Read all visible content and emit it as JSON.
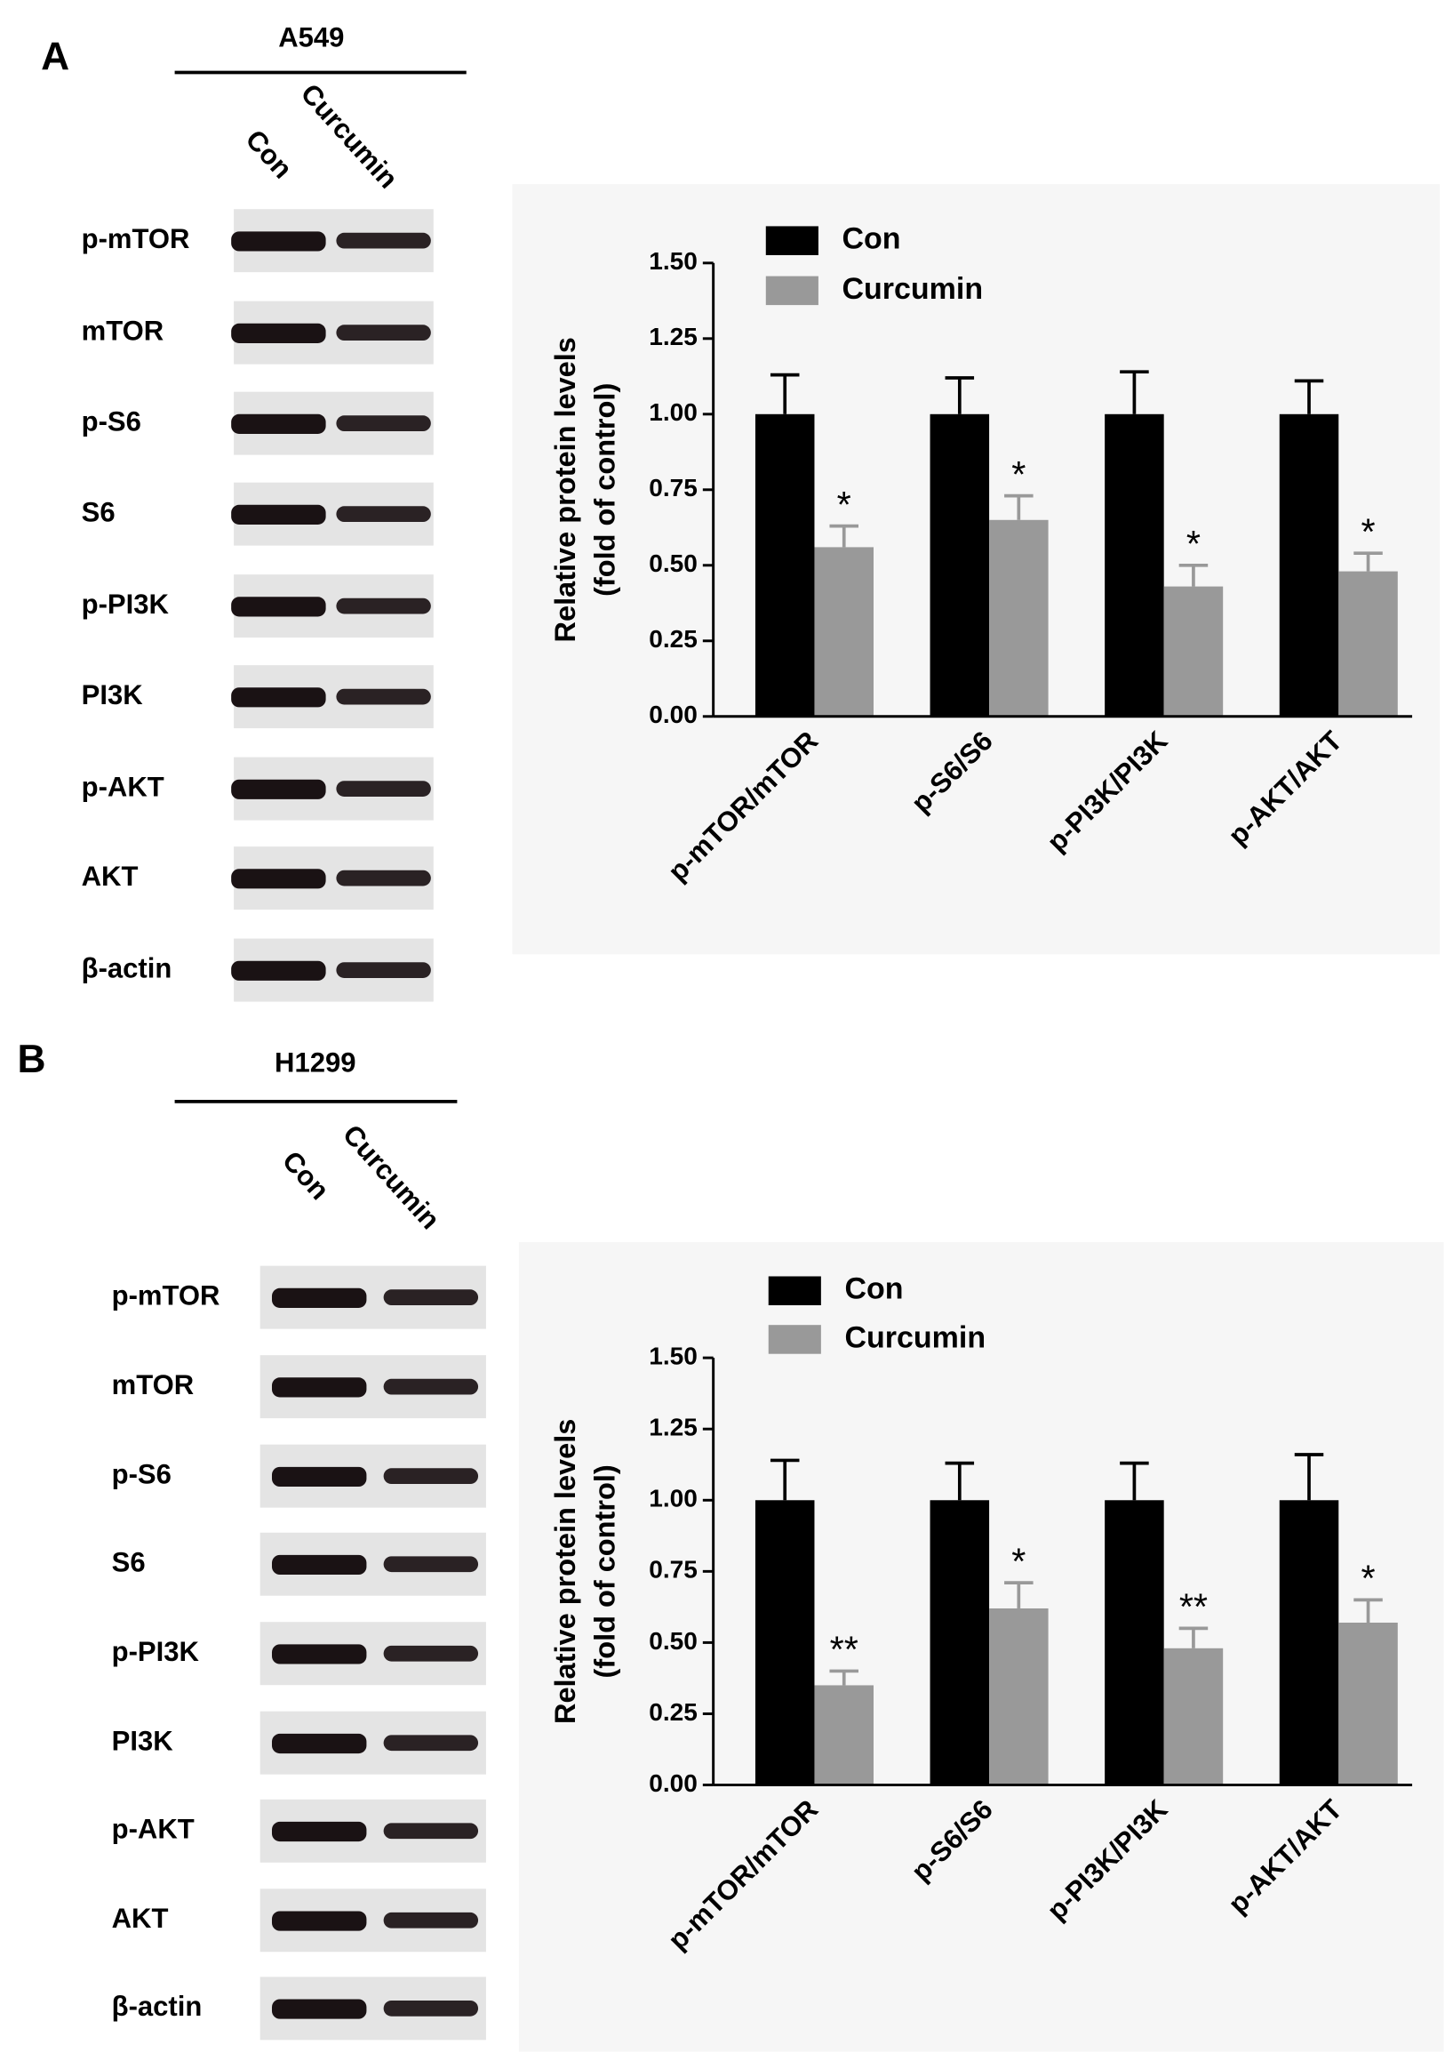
{
  "blots": [
    {
      "panel": "A",
      "cell_line": "A549",
      "lanes": [
        "Con",
        "Curcumin"
      ],
      "rows": [
        "p-mTOR",
        "mTOR",
        "p-S6",
        "S6",
        "p-PI3K",
        "PI3K",
        "p-AKT",
        "AKT",
        "β-actin"
      ]
    },
    {
      "panel": "B",
      "cell_line": "H1299",
      "lanes": [
        "Con",
        "Curcumin"
      ],
      "rows": [
        "p-mTOR",
        "mTOR",
        "p-S6",
        "S6",
        "p-PI3K",
        "PI3K",
        "p-AKT",
        "AKT",
        "β-actin"
      ]
    }
  ],
  "chart_data": [
    {
      "type": "bar",
      "ylabel": [
        "Relative protein levels",
        "(fold of control)"
      ],
      "categories": [
        "p-mTOR/mTOR",
        "p-S6/S6",
        "p-PI3K/PI3K",
        "p-AKT/AKT"
      ],
      "series": [
        {
          "name": "Con",
          "color": "#000000",
          "values": [
            1,
            1,
            1,
            1
          ],
          "errors": [
            0.13,
            0.12,
            0.14,
            0.11
          ]
        },
        {
          "name": "Curcumin",
          "color": "#999999",
          "values": [
            0.56,
            0.65,
            0.43,
            0.48
          ],
          "errors": [
            0.07,
            0.08,
            0.07,
            0.06
          ],
          "significance": [
            "*",
            "*",
            "*",
            "*"
          ]
        }
      ],
      "ylim": [
        0,
        1.5
      ],
      "yticks": [
        {
          "value": 0,
          "label": "0.00"
        },
        {
          "value": 0.25,
          "label": "0.25"
        },
        {
          "value": 0.5,
          "label": "0.50"
        },
        {
          "value": 0.75,
          "label": "0.75"
        },
        {
          "value": 1,
          "label": "1.00"
        },
        {
          "value": 1.25,
          "label": "1.25"
        },
        {
          "value": 1.5,
          "label": "1.50"
        }
      ]
    },
    {
      "type": "bar",
      "ylabel": [
        "Relative protein levels",
        "(fold of control)"
      ],
      "categories": [
        "p-mTOR/mTOR",
        "p-S6/S6",
        "p-PI3K/PI3K",
        "p-AKT/AKT"
      ],
      "series": [
        {
          "name": "Con",
          "color": "#000000",
          "values": [
            1,
            1,
            1,
            1
          ],
          "errors": [
            0.14,
            0.13,
            0.13,
            0.16
          ]
        },
        {
          "name": "Curcumin",
          "color": "#999999",
          "values": [
            0.35,
            0.62,
            0.48,
            0.57
          ],
          "errors": [
            0.05,
            0.09,
            0.07,
            0.08
          ],
          "significance": [
            "**",
            "*",
            "**",
            "*"
          ]
        }
      ],
      "ylim": [
        0,
        1.5
      ],
      "yticks": [
        {
          "value": 0,
          "label": "0.00"
        },
        {
          "value": 0.25,
          "label": "0.25"
        },
        {
          "value": 0.5,
          "label": "0.50"
        },
        {
          "value": 0.75,
          "label": "0.75"
        },
        {
          "value": 1,
          "label": "1.00"
        },
        {
          "value": 1.25,
          "label": "1.25"
        },
        {
          "value": 1.5,
          "label": "1.50"
        }
      ]
    }
  ]
}
